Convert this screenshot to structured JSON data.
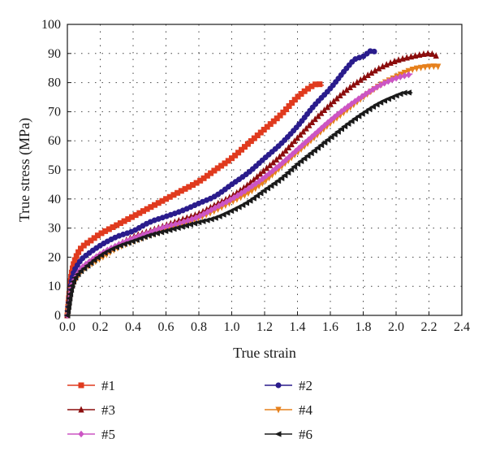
{
  "chart_data": {
    "type": "line",
    "title": "",
    "xlabel": "True strain",
    "ylabel": "True stress (MPa)",
    "xlim": [
      0.0,
      2.4
    ],
    "ylim": [
      0,
      100
    ],
    "xticks": [
      "0.0",
      "0.2",
      "0.4",
      "0.6",
      "0.8",
      "1.0",
      "1.2",
      "1.4",
      "1.6",
      "1.8",
      "2.0",
      "2.2",
      "2.4"
    ],
    "yticks": [
      "0",
      "10",
      "20",
      "30",
      "40",
      "50",
      "60",
      "70",
      "80",
      "90",
      "100"
    ],
    "grid": "dotted",
    "legend_position": "below plot, two columns",
    "series": [
      {
        "name": "#1",
        "color": "#e03a1e",
        "marker": "square",
        "x": [
          0.0,
          0.02,
          0.04,
          0.07,
          0.1,
          0.15,
          0.2,
          0.3,
          0.4,
          0.5,
          0.6,
          0.7,
          0.8,
          0.9,
          1.0,
          1.1,
          1.2,
          1.3,
          1.4,
          1.48,
          1.52,
          1.56
        ],
        "y": [
          0,
          12,
          18,
          22,
          24,
          26,
          28,
          31,
          34,
          37,
          40,
          43,
          46,
          50,
          54,
          59,
          64,
          69,
          75,
          78.5,
          79.5,
          79
        ]
      },
      {
        "name": "#2",
        "color": "#2a1c8c",
        "marker": "circle",
        "x": [
          0.0,
          0.02,
          0.04,
          0.07,
          0.1,
          0.2,
          0.3,
          0.4,
          0.5,
          0.6,
          0.7,
          0.8,
          0.9,
          1.0,
          1.1,
          1.2,
          1.3,
          1.4,
          1.5,
          1.6,
          1.7,
          1.75,
          1.8,
          1.85,
          1.88
        ],
        "y": [
          0,
          10,
          15,
          18,
          20,
          24,
          27,
          29,
          32,
          34,
          36,
          38.5,
          41,
          45,
          49,
          54,
          59,
          65,
          72,
          78,
          85,
          88,
          89,
          91,
          90
        ]
      },
      {
        "name": "#3",
        "color": "#8b0d0d",
        "marker": "triangle-up",
        "x": [
          0.0,
          0.02,
          0.04,
          0.07,
          0.1,
          0.2,
          0.3,
          0.4,
          0.5,
          0.6,
          0.7,
          0.8,
          0.9,
          1.0,
          1.1,
          1.2,
          1.3,
          1.4,
          1.5,
          1.6,
          1.7,
          1.8,
          1.9,
          2.0,
          2.1,
          2.2,
          2.25
        ],
        "y": [
          0,
          8,
          12,
          15,
          17,
          21,
          24,
          27,
          29,
          31,
          33,
          35,
          38,
          41,
          45,
          50,
          55,
          61,
          67,
          72.5,
          77.5,
          81.5,
          85,
          87.5,
          89,
          90,
          89
        ]
      },
      {
        "name": "#4",
        "color": "#e6801c",
        "marker": "triangle-down",
        "x": [
          0.0,
          0.02,
          0.04,
          0.07,
          0.1,
          0.2,
          0.3,
          0.4,
          0.5,
          0.6,
          0.7,
          0.8,
          0.9,
          1.0,
          1.1,
          1.2,
          1.3,
          1.4,
          1.5,
          1.6,
          1.7,
          1.8,
          1.9,
          2.0,
          2.1,
          2.2,
          2.26
        ],
        "y": [
          0,
          8,
          11,
          14,
          16,
          19.5,
          23,
          25.5,
          27.5,
          29.5,
          31.5,
          33.5,
          36,
          39,
          42,
          46,
          51,
          56,
          61,
          66,
          70.5,
          75,
          79,
          82,
          84.5,
          85.5,
          85.5
        ]
      },
      {
        "name": "#5",
        "color": "#cc55c4",
        "marker": "diamond",
        "x": [
          0.0,
          0.02,
          0.04,
          0.07,
          0.1,
          0.2,
          0.3,
          0.4,
          0.5,
          0.6,
          0.7,
          0.8,
          0.9,
          1.0,
          1.1,
          1.2,
          1.3,
          1.4,
          1.5,
          1.6,
          1.7,
          1.8,
          1.9,
          2.0,
          2.1
        ],
        "y": [
          0,
          9,
          12,
          15,
          17,
          21,
          24,
          26.5,
          28.5,
          30.5,
          32,
          34,
          37,
          40,
          43.5,
          47.5,
          52,
          57,
          62,
          67,
          71.5,
          75.5,
          79,
          81.5,
          83
        ]
      },
      {
        "name": "#6",
        "color": "#1a1a1a",
        "marker": "triangle-left",
        "x": [
          0.0,
          0.02,
          0.04,
          0.07,
          0.1,
          0.2,
          0.3,
          0.4,
          0.5,
          0.6,
          0.7,
          0.8,
          0.9,
          1.0,
          1.1,
          1.2,
          1.3,
          1.4,
          1.5,
          1.6,
          1.7,
          1.8,
          1.9,
          2.0,
          2.05,
          2.1
        ],
        "y": [
          0,
          8,
          12,
          14.5,
          16,
          20.5,
          23.5,
          25.5,
          27.5,
          29,
          30.5,
          32,
          33.5,
          36,
          39,
          43,
          47,
          52,
          56.5,
          61,
          65.5,
          69.5,
          73,
          75.5,
          76.5,
          76.5
        ]
      }
    ]
  }
}
